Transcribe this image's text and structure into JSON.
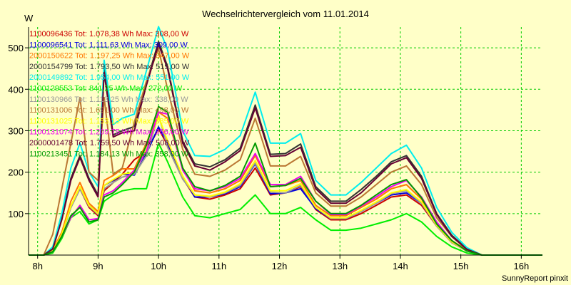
{
  "chart_data": {
    "type": "line",
    "title": "Wechselrichtervergleich vom 11.01.2014",
    "ylabel": "W",
    "xlabel": "",
    "footer": "SunnyReport pinxit",
    "ylim": [
      0,
      550
    ],
    "xlim": [
      7.85,
      16.35
    ],
    "yticks": [
      100,
      200,
      300,
      400,
      500
    ],
    "xticks": [
      {
        "value": 8,
        "label": "8h"
      },
      {
        "value": 9,
        "label": "9h"
      },
      {
        "value": 10,
        "label": "10h"
      },
      {
        "value": 11,
        "label": "11h"
      },
      {
        "value": 12,
        "label": "12h"
      },
      {
        "value": 13,
        "label": "13h"
      },
      {
        "value": 14,
        "label": "14h"
      },
      {
        "value": 15,
        "label": "15h"
      },
      {
        "value": 16,
        "label": "16h"
      }
    ],
    "grid": true,
    "legend_position": "top-left",
    "background": "#ffffc8",
    "grid_color": "#00cc00",
    "x": [
      7.85,
      8.0,
      8.1,
      8.25,
      8.4,
      8.55,
      8.7,
      8.85,
      9.0,
      9.1,
      9.25,
      9.4,
      9.6,
      9.8,
      10.0,
      10.15,
      10.4,
      10.6,
      10.85,
      11.1,
      11.35,
      11.6,
      11.85,
      12.1,
      12.35,
      12.6,
      12.85,
      13.1,
      13.35,
      13.6,
      13.85,
      14.1,
      14.35,
      14.6,
      14.85,
      15.1,
      15.35,
      15.6,
      15.85,
      16.1,
      16.35
    ],
    "series": [
      {
        "name": "1100096436 Tot: 1.078,38 Wh Max: 308,00 W",
        "color": "#cc0000",
        "values": [
          0,
          0,
          0,
          10,
          50,
          115,
          160,
          115,
          95,
          155,
          175,
          195,
          230,
          250,
          305,
          265,
          185,
          140,
          135,
          145,
          160,
          210,
          145,
          150,
          165,
          110,
          85,
          85,
          100,
          120,
          140,
          145,
          120,
          70,
          30,
          10,
          0,
          0,
          0,
          0,
          0
        ]
      },
      {
        "name": "1100096541 Tot: 1.111,63 Wh Max: 309,00 W",
        "color": "#0000dd",
        "values": [
          0,
          0,
          0,
          10,
          50,
          115,
          160,
          120,
          100,
          168,
          180,
          195,
          193,
          245,
          309,
          270,
          190,
          140,
          140,
          148,
          165,
          220,
          148,
          150,
          160,
          112,
          88,
          88,
          105,
          125,
          145,
          150,
          125,
          72,
          32,
          10,
          0,
          0,
          0,
          0,
          0
        ]
      },
      {
        "name": "2000150622 Tot: 1.197,25 Wh Max: 347,00 W",
        "color": "#ff7700",
        "values": [
          0,
          0,
          0,
          12,
          55,
          130,
          175,
          125,
          105,
          180,
          192,
          208,
          208,
          270,
          345,
          330,
          210,
          155,
          150,
          160,
          180,
          240,
          165,
          168,
          180,
          120,
          95,
          95,
          115,
          135,
          160,
          170,
          135,
          75,
          35,
          12,
          0,
          0,
          0,
          0,
          0
        ]
      },
      {
        "name": "2000154799 Tot: 1.793,50 Wh Max: 515,00 W",
        "color": "#333333",
        "values": [
          0,
          0,
          0,
          15,
          90,
          185,
          240,
          185,
          145,
          450,
          290,
          300,
          310,
          415,
          515,
          455,
          275,
          220,
          213,
          230,
          258,
          362,
          243,
          245,
          268,
          165,
          130,
          130,
          158,
          190,
          225,
          240,
          190,
          100,
          48,
          15,
          0,
          0,
          0,
          0,
          0
        ]
      },
      {
        "name": "2000149892 Tot: 1.954,00 Wh Max: 551,00 W",
        "color": "#00eeee",
        "values": [
          0,
          0,
          0,
          20,
          100,
          210,
          270,
          200,
          165,
          470,
          315,
          330,
          340,
          445,
          551,
          495,
          300,
          240,
          238,
          255,
          288,
          393,
          270,
          270,
          293,
          180,
          145,
          145,
          175,
          210,
          245,
          265,
          210,
          115,
          55,
          18,
          0,
          0,
          0,
          0,
          0
        ]
      },
      {
        "name": "1100129553 Tot: 841,25 Wh Max: 272,00 W",
        "color": "#00ee00",
        "values": [
          0,
          0,
          0,
          5,
          40,
          90,
          105,
          75,
          85,
          130,
          145,
          155,
          160,
          160,
          270,
          225,
          140,
          95,
          90,
          100,
          110,
          145,
          100,
          100,
          115,
          85,
          60,
          60,
          65,
          75,
          85,
          100,
          80,
          45,
          20,
          5,
          0,
          0,
          0,
          0,
          0
        ]
      },
      {
        "name": "1100130966 Tot: 1.113,25 Wh Max: 338,00 W",
        "color": "#999999",
        "values": [
          0,
          0,
          0,
          10,
          48,
          115,
          160,
          118,
          98,
          160,
          175,
          188,
          195,
          240,
          338,
          260,
          183,
          145,
          140,
          150,
          168,
          222,
          152,
          150,
          168,
          115,
          88,
          88,
          105,
          125,
          148,
          155,
          125,
          70,
          30,
          10,
          0,
          0,
          0,
          0,
          0
        ]
      },
      {
        "name": "1100131006 Tot: 1.691,00 Wh Max: 498,00 W",
        "color": "#bb7733",
        "values": [
          0,
          0,
          0,
          50,
          160,
          270,
          380,
          200,
          180,
          380,
          195,
          210,
          320,
          420,
          498,
          400,
          255,
          195,
          190,
          205,
          230,
          330,
          215,
          215,
          238,
          150,
          118,
          118,
          140,
          170,
          200,
          215,
          170,
          90,
          45,
          14,
          0,
          0,
          0,
          0,
          0
        ]
      },
      {
        "name": "1100131025 Tot: 1.153,13 Wh Max: 335,00 W",
        "color": "#ffff00",
        "values": [
          0,
          0,
          0,
          10,
          50,
          118,
          165,
          120,
          100,
          168,
          182,
          195,
          200,
          255,
          335,
          275,
          190,
          145,
          142,
          152,
          172,
          228,
          155,
          155,
          172,
          115,
          90,
          90,
          108,
          128,
          150,
          158,
          128,
          72,
          32,
          10,
          0,
          0,
          0,
          0,
          0
        ]
      },
      {
        "name": "1100131074 Tot: 1.209,75 Wh Max: 356,00 W",
        "color": "#ee00ee",
        "values": [
          0,
          0,
          0,
          8,
          45,
          90,
          120,
          85,
          88,
          145,
          155,
          175,
          205,
          250,
          345,
          340,
          205,
          160,
          155,
          165,
          185,
          245,
          170,
          170,
          190,
          130,
          98,
          98,
          118,
          140,
          165,
          180,
          140,
          80,
          35,
          10,
          0,
          0,
          0,
          0,
          0
        ]
      },
      {
        "name": "2000001478 Tot: 1.759,50 Wh Max: 508,00 W",
        "color": "#660033",
        "values": [
          0,
          0,
          0,
          15,
          85,
          180,
          235,
          180,
          140,
          440,
          285,
          295,
          300,
          410,
          508,
          450,
          270,
          215,
          205,
          225,
          252,
          355,
          238,
          240,
          260,
          160,
          125,
          125,
          150,
          185,
          220,
          235,
          185,
          98,
          45,
          14,
          0,
          0,
          0,
          0,
          0
        ]
      },
      {
        "name": "1100213451 Tot: 1.184,13 Wh Max: 358,00 W",
        "color": "#009900",
        "values": [
          0,
          0,
          0,
          8,
          45,
          95,
          115,
          80,
          85,
          140,
          150,
          170,
          200,
          265,
          358,
          345,
          210,
          165,
          155,
          168,
          190,
          270,
          165,
          168,
          185,
          130,
          100,
          100,
          120,
          145,
          170,
          182,
          138,
          75,
          35,
          10,
          0,
          0,
          0,
          0,
          0
        ]
      }
    ]
  }
}
